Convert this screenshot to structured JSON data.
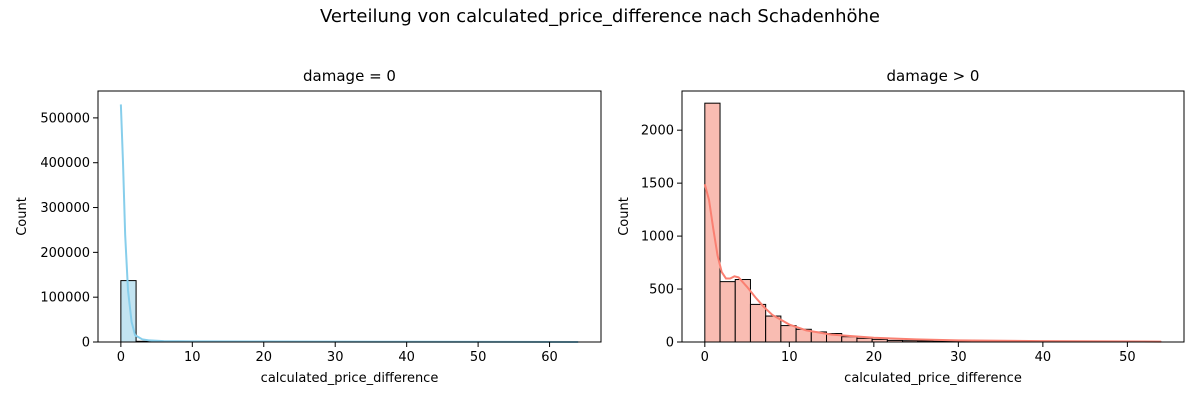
{
  "suptitle": "Verteilung von calculated_price_difference nach Schadenhöhe",
  "chart_data": [
    {
      "type": "bar",
      "subtype": "histogram_with_kde",
      "title": "damage = 0",
      "xlabel": "calculated_price_difference",
      "ylabel": "Count",
      "xlim": [
        -3.2,
        67.2
      ],
      "ylim": [
        0,
        560000
      ],
      "xticks": [
        0,
        10,
        20,
        30,
        40,
        50,
        60
      ],
      "yticks": [
        0,
        100000,
        200000,
        300000,
        400000,
        500000
      ],
      "bar_color": "#c3e4f1",
      "line_color": "#87ceeb",
      "bin_width": 2.13,
      "bins": [
        {
          "x0": 0,
          "x1": 2.13,
          "count": 137000
        },
        {
          "x0": 2.13,
          "x1": 4.27,
          "count": 1500
        },
        {
          "x0": 4.27,
          "x1": 6.4,
          "count": 700
        },
        {
          "x0": 6.4,
          "x1": 8.53,
          "count": 400
        },
        {
          "x0": 8.53,
          "x1": 10.67,
          "count": 250
        },
        {
          "x0": 10.67,
          "x1": 12.8,
          "count": 150
        },
        {
          "x0": 12.8,
          "x1": 14.93,
          "count": 100
        },
        {
          "x0": 14.93,
          "x1": 17.07,
          "count": 60
        },
        {
          "x0": 17.07,
          "x1": 19.2,
          "count": 40
        },
        {
          "x0": 19.2,
          "x1": 21.33,
          "count": 30
        }
      ],
      "kde": {
        "x": [
          0,
          0.3,
          0.6,
          1,
          1.5,
          2,
          3,
          4,
          6,
          10,
          20,
          40,
          64
        ],
        "y": [
          530000,
          400000,
          240000,
          115000,
          45000,
          15000,
          6000,
          3500,
          2000,
          1500,
          1000,
          500,
          0
        ]
      }
    },
    {
      "type": "bar",
      "subtype": "histogram_with_kde",
      "title": "damage > 0",
      "xlabel": "calculated_price_difference",
      "ylabel": "Count",
      "xlim": [
        -2.7,
        56.7
      ],
      "ylim": [
        0,
        2370
      ],
      "xticks": [
        0,
        10,
        20,
        30,
        40,
        50
      ],
      "yticks": [
        0,
        500,
        1000,
        1500,
        2000
      ],
      "bar_color": "#f9bcb2",
      "line_color": "#fa8072",
      "bin_width": 1.8,
      "bins": [
        {
          "x0": 0,
          "x1": 1.8,
          "count": 2255
        },
        {
          "x0": 1.8,
          "x1": 3.6,
          "count": 570
        },
        {
          "x0": 3.6,
          "x1": 5.4,
          "count": 590
        },
        {
          "x0": 5.4,
          "x1": 7.2,
          "count": 355
        },
        {
          "x0": 7.2,
          "x1": 9.0,
          "count": 245
        },
        {
          "x0": 9.0,
          "x1": 10.8,
          "count": 155
        },
        {
          "x0": 10.8,
          "x1": 12.6,
          "count": 120
        },
        {
          "x0": 12.6,
          "x1": 14.4,
          "count": 95
        },
        {
          "x0": 14.4,
          "x1": 16.2,
          "count": 80
        },
        {
          "x0": 16.2,
          "x1": 18.0,
          "count": 50
        },
        {
          "x0": 18.0,
          "x1": 19.8,
          "count": 35
        },
        {
          "x0": 19.8,
          "x1": 21.6,
          "count": 25
        },
        {
          "x0": 21.6,
          "x1": 23.4,
          "count": 15
        },
        {
          "x0": 23.4,
          "x1": 25.2,
          "count": 12
        },
        {
          "x0": 25.2,
          "x1": 27.0,
          "count": 10
        },
        {
          "x0": 27.0,
          "x1": 28.8,
          "count": 8
        },
        {
          "x0": 28.8,
          "x1": 30.6,
          "count": 6
        },
        {
          "x0": 30.6,
          "x1": 32.4,
          "count": 5
        },
        {
          "x0": 32.4,
          "x1": 34.2,
          "count": 4
        },
        {
          "x0": 34.2,
          "x1": 36.0,
          "count": 4
        },
        {
          "x0": 36.0,
          "x1": 37.8,
          "count": 3
        },
        {
          "x0": 37.8,
          "x1": 39.6,
          "count": 3
        },
        {
          "x0": 39.6,
          "x1": 41.4,
          "count": 2
        },
        {
          "x0": 41.4,
          "x1": 43.2,
          "count": 2
        },
        {
          "x0": 43.2,
          "x1": 45.0,
          "count": 2
        },
        {
          "x0": 45.0,
          "x1": 46.8,
          "count": 1
        },
        {
          "x0": 46.8,
          "x1": 48.6,
          "count": 1
        },
        {
          "x0": 48.6,
          "x1": 50.4,
          "count": 1
        },
        {
          "x0": 50.4,
          "x1": 52.2,
          "count": 1
        },
        {
          "x0": 52.2,
          "x1": 54.0,
          "count": 1
        }
      ],
      "kde": {
        "x": [
          0,
          0.5,
          1,
          1.5,
          2,
          2.5,
          3,
          3.5,
          4,
          5,
          6,
          7,
          8,
          10,
          12,
          15,
          20,
          25,
          30,
          40,
          54
        ],
        "y": [
          1490,
          1340,
          1070,
          820,
          660,
          600,
          600,
          620,
          610,
          520,
          420,
          330,
          255,
          165,
          110,
          70,
          40,
          25,
          15,
          8,
          4
        ]
      }
    }
  ]
}
